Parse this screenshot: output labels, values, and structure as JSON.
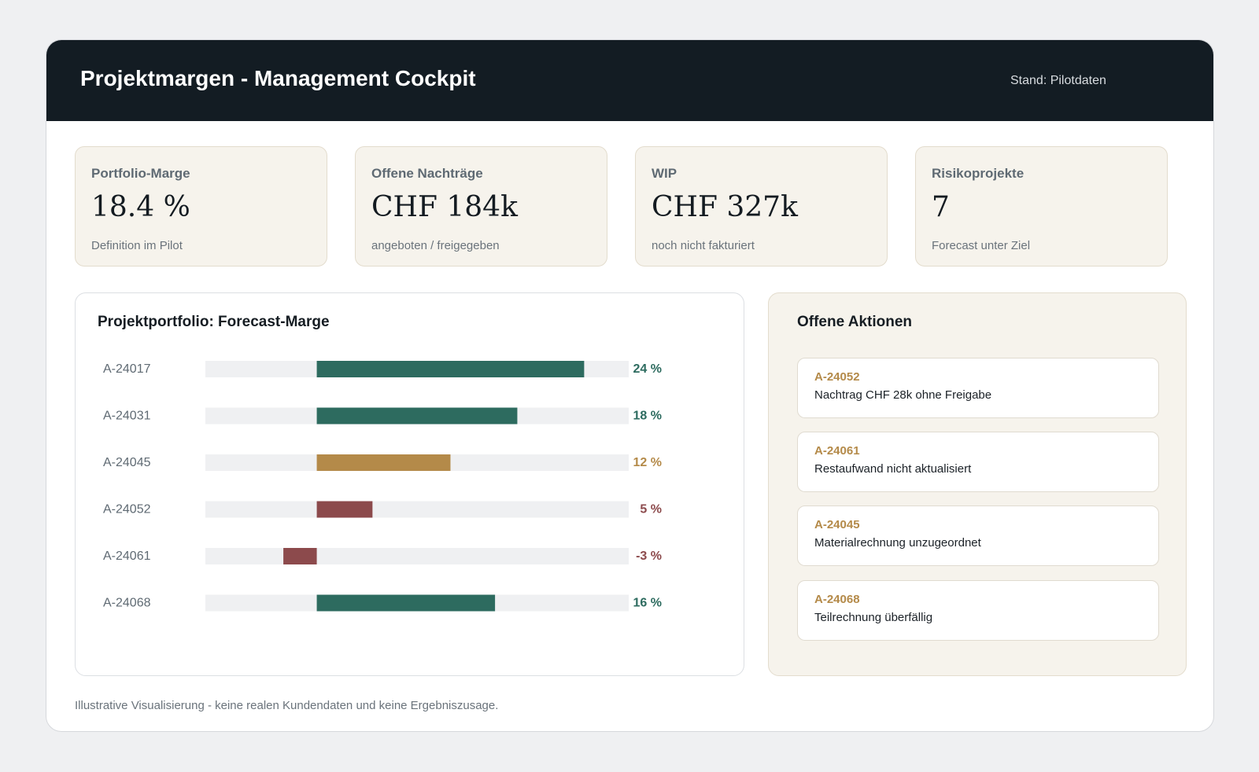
{
  "header": {
    "title": "Projektmargen - Management Cockpit",
    "stand": "Stand: Pilotdaten"
  },
  "kpis": [
    {
      "label": "Portfolio-Marge",
      "value": "18.4 %",
      "sub": "Definition im Pilot"
    },
    {
      "label": "Offene Nachträge",
      "value": "CHF 184k",
      "sub": "angeboten / freigegeben"
    },
    {
      "label": "WIP",
      "value": "CHF 327k",
      "sub": "noch nicht fakturiert"
    },
    {
      "label": "Risikoprojekte",
      "value": "7",
      "sub": "Forecast unter Ziel"
    }
  ],
  "chart_title": "Projektportfolio: Forecast-Marge",
  "chart_data": {
    "type": "bar",
    "title": "Projektportfolio: Forecast-Marge",
    "orientation": "horizontal",
    "xlim": [
      -10,
      28
    ],
    "categories": [
      "A-24017",
      "A-24031",
      "A-24045",
      "A-24052",
      "A-24061",
      "A-24068"
    ],
    "values": [
      24,
      18,
      12,
      5,
      -3,
      16
    ],
    "value_labels": [
      "24 %",
      "18 %",
      "12 %",
      "5 %",
      "-3 %",
      "16 %"
    ],
    "bar_colors": [
      "#2d6b5f",
      "#2d6b5f",
      "#b48a49",
      "#8c4a4c",
      "#8c4a4c",
      "#2d6b5f"
    ],
    "track_color": "#eff0f2"
  },
  "actions": {
    "title": "Offene Aktionen",
    "items": [
      {
        "id": "A-24052",
        "text": "Nachtrag CHF 28k ohne Freigabe"
      },
      {
        "id": "A-24061",
        "text": "Restaufwand nicht aktualisiert"
      },
      {
        "id": "A-24045",
        "text": "Materialrechnung unzugeordnet"
      },
      {
        "id": "A-24068",
        "text": "Teilrechnung überfällig"
      }
    ]
  },
  "footnote": "Illustrative Visualisierung - keine realen Kundendaten und keine Ergebniszusage.",
  "colors": {
    "header_bg": "#131c23",
    "accent_green": "#2d6b5f",
    "accent_gold": "#b48a49",
    "accent_red": "#8c4a4c",
    "card_beige": "#f6f3ec"
  }
}
